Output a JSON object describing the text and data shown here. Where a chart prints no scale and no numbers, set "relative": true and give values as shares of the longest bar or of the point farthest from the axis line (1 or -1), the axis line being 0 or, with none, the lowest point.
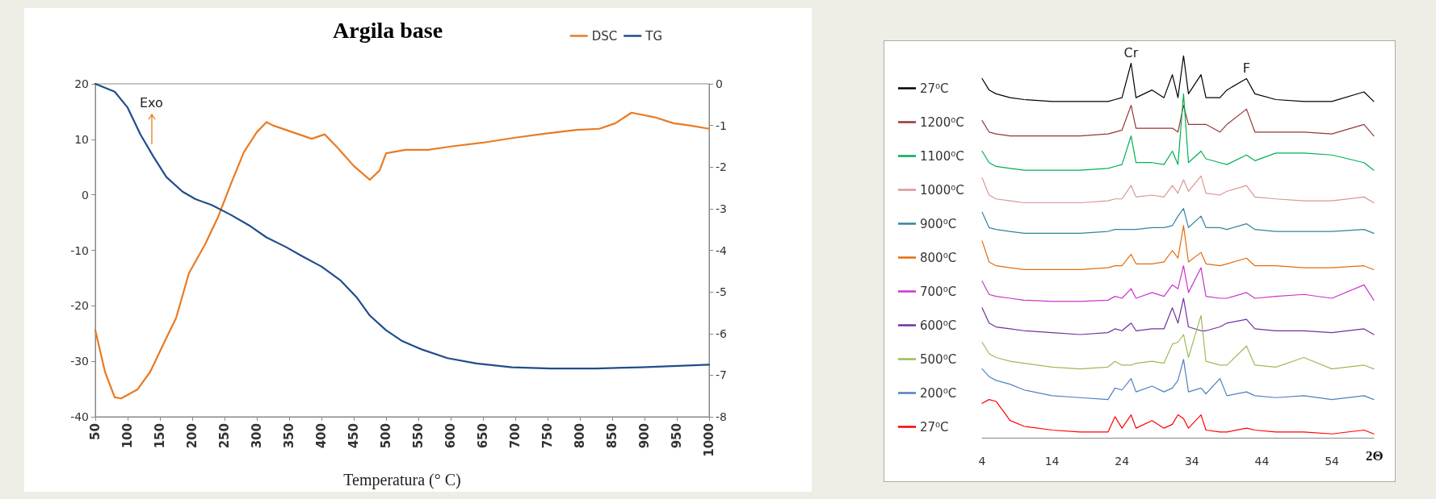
{
  "chart_data": [
    {
      "type": "line",
      "title": "Argila base",
      "xlabel": "Temperatura (° C)",
      "annotations": [
        "Exo"
      ],
      "legend": "top right",
      "marker": "none",
      "xlim": [
        50,
        1000
      ],
      "xticks": [
        50,
        100,
        150,
        200,
        250,
        300,
        350,
        400,
        450,
        500,
        550,
        600,
        650,
        700,
        750,
        800,
        850,
        900,
        950,
        1000
      ],
      "ylim": [
        -40,
        20
      ],
      "yticks": [
        -40,
        -30,
        -20,
        -10,
        0,
        10,
        20
      ],
      "y2lim": [
        -8,
        0
      ],
      "y2ticks": [
        -8,
        -7,
        -6,
        -5,
        -4,
        -3,
        -2,
        -1,
        0
      ],
      "series": [
        {
          "name": "DSC",
          "color": "#e87b24",
          "x": [
            50,
            65,
            80,
            90,
            115,
            135,
            155,
            175,
            195,
            220,
            240,
            260,
            280,
            300,
            315,
            325,
            355,
            385,
            405,
            425,
            450,
            475,
            490,
            500,
            530,
            565,
            600,
            650,
            700,
            745,
            795,
            830,
            855,
            880,
            915,
            945,
            970,
            1000
          ],
          "values": [
            -24.4,
            -31.9,
            -36.5,
            -36.7,
            -35.1,
            -31.9,
            -27.0,
            -22.2,
            -14.1,
            -8.9,
            -4.0,
            2.0,
            7.7,
            11.3,
            13.1,
            12.5,
            11.3,
            10.1,
            10.9,
            8.5,
            5.2,
            2.7,
            4.4,
            7.5,
            8.1,
            8.1,
            8.7,
            9.4,
            10.3,
            11.0,
            11.7,
            11.9,
            12.9,
            14.8,
            14.0,
            12.9,
            12.5,
            11.9
          ]
        },
        {
          "name": "TG",
          "color": "#1f4e8c",
          "axis": "y2",
          "x": [
            50,
            80,
            100,
            120,
            140,
            160,
            185,
            205,
            230,
            260,
            290,
            315,
            345,
            370,
            400,
            430,
            455,
            475,
            500,
            525,
            555,
            595,
            640,
            695,
            755,
            825,
            895,
            1000
          ],
          "values": [
            0,
            -0.19,
            -0.57,
            -1.22,
            -1.75,
            -2.24,
            -2.59,
            -2.77,
            -2.91,
            -3.15,
            -3.42,
            -3.69,
            -3.92,
            -4.14,
            -4.39,
            -4.73,
            -5.14,
            -5.57,
            -5.92,
            -6.18,
            -6.38,
            -6.59,
            -6.72,
            -6.81,
            -6.84,
            -6.84,
            -6.81,
            -6.75
          ]
        }
      ]
    },
    {
      "type": "line",
      "relative": true,
      "xlabel": "2Θ",
      "legend": "left",
      "marker": "none",
      "annotations": [
        {
          "text": "Cr",
          "x": 25.3,
          "y": 0.99
        },
        {
          "text": "F",
          "x": 41.8,
          "y": 0.95
        }
      ],
      "xlim": [
        4,
        60
      ],
      "xticks": [
        4,
        14,
        24,
        34,
        44,
        54
      ],
      "x": [
        4,
        5,
        6,
        8,
        10,
        14,
        18,
        22,
        23,
        24,
        25.3,
        26,
        28.3,
        30,
        31.2,
        32,
        32.8,
        33.5,
        35.3,
        36,
        38,
        39,
        41.8,
        43,
        46,
        50,
        54,
        58.6,
        60
      ],
      "series": [
        {
          "name": "27⁰C",
          "color": "#000000",
          "values": [
            0.94,
            0.91,
            0.9,
            0.89,
            0.885,
            0.88,
            0.88,
            0.88,
            0.885,
            0.89,
            0.98,
            0.89,
            0.91,
            0.89,
            0.95,
            0.89,
            1.0,
            0.9,
            0.95,
            0.89,
            0.89,
            0.91,
            0.94,
            0.9,
            0.885,
            0.88,
            0.88,
            0.905,
            0.88
          ]
        },
        {
          "name": "1200⁰C",
          "color": "#953735",
          "values": [
            0.83,
            0.8,
            0.795,
            0.79,
            0.79,
            0.79,
            0.79,
            0.795,
            0.8,
            0.805,
            0.87,
            0.81,
            0.81,
            0.81,
            0.81,
            0.8,
            0.87,
            0.82,
            0.82,
            0.82,
            0.8,
            0.82,
            0.86,
            0.8,
            0.8,
            0.8,
            0.795,
            0.82,
            0.79
          ]
        },
        {
          "name": "1100⁰C",
          "color": "#00b050",
          "values": [
            0.75,
            0.72,
            0.71,
            0.705,
            0.7,
            0.7,
            0.7,
            0.705,
            0.71,
            0.715,
            0.79,
            0.72,
            0.72,
            0.715,
            0.75,
            0.715,
            0.9,
            0.72,
            0.75,
            0.73,
            0.72,
            0.715,
            0.74,
            0.725,
            0.745,
            0.745,
            0.74,
            0.72,
            0.7
          ]
        },
        {
          "name": "1000⁰C",
          "color": "#d99694",
          "values": [
            0.68,
            0.635,
            0.625,
            0.62,
            0.615,
            0.615,
            0.615,
            0.62,
            0.625,
            0.625,
            0.66,
            0.63,
            0.635,
            0.63,
            0.66,
            0.64,
            0.675,
            0.645,
            0.685,
            0.64,
            0.635,
            0.645,
            0.66,
            0.63,
            0.625,
            0.62,
            0.62,
            0.63,
            0.615
          ]
        },
        {
          "name": "900⁰C",
          "color": "#31859c",
          "values": [
            0.59,
            0.55,
            0.545,
            0.54,
            0.535,
            0.535,
            0.535,
            0.54,
            0.545,
            0.545,
            0.545,
            0.545,
            0.55,
            0.55,
            0.555,
            0.58,
            0.6,
            0.55,
            0.58,
            0.55,
            0.55,
            0.545,
            0.56,
            0.545,
            0.54,
            0.54,
            0.54,
            0.545,
            0.535
          ]
        },
        {
          "name": "800⁰C",
          "color": "#e46c0a",
          "values": [
            0.515,
            0.46,
            0.45,
            0.445,
            0.44,
            0.44,
            0.44,
            0.445,
            0.45,
            0.45,
            0.48,
            0.455,
            0.455,
            0.46,
            0.49,
            0.47,
            0.555,
            0.46,
            0.485,
            0.455,
            0.45,
            0.455,
            0.47,
            0.45,
            0.45,
            0.445,
            0.445,
            0.45,
            0.44
          ]
        },
        {
          "name": "700⁰C",
          "color": "#cc33cc",
          "values": [
            0.41,
            0.375,
            0.37,
            0.365,
            0.36,
            0.357,
            0.357,
            0.36,
            0.37,
            0.365,
            0.39,
            0.365,
            0.38,
            0.37,
            0.4,
            0.39,
            0.45,
            0.38,
            0.445,
            0.37,
            0.365,
            0.365,
            0.38,
            0.365,
            0.37,
            0.375,
            0.365,
            0.4,
            0.36
          ]
        },
        {
          "name": "600⁰C",
          "color": "#7030a0",
          "values": [
            0.34,
            0.3,
            0.29,
            0.285,
            0.28,
            0.275,
            0.27,
            0.275,
            0.285,
            0.28,
            0.3,
            0.28,
            0.285,
            0.285,
            0.34,
            0.3,
            0.365,
            0.29,
            0.28,
            0.28,
            0.29,
            0.3,
            0.31,
            0.285,
            0.28,
            0.28,
            0.275,
            0.285,
            0.27
          ]
        },
        {
          "name": "500⁰C",
          "color": "#9bbb59",
          "values": [
            0.25,
            0.22,
            0.21,
            0.2,
            0.195,
            0.185,
            0.18,
            0.185,
            0.2,
            0.19,
            0.19,
            0.195,
            0.2,
            0.195,
            0.245,
            0.25,
            0.27,
            0.21,
            0.32,
            0.2,
            0.19,
            0.19,
            0.24,
            0.19,
            0.185,
            0.21,
            0.18,
            0.19,
            0.18
          ]
        },
        {
          "name": "200⁰C",
          "color": "#4f81bd",
          "values": [
            0.18,
            0.16,
            0.15,
            0.14,
            0.125,
            0.11,
            0.105,
            0.1,
            0.13,
            0.125,
            0.155,
            0.12,
            0.135,
            0.12,
            0.13,
            0.15,
            0.205,
            0.12,
            0.13,
            0.115,
            0.155,
            0.11,
            0.12,
            0.11,
            0.105,
            0.11,
            0.1,
            0.11,
            0.1
          ]
        },
        {
          "name": "27⁰C",
          "color": "#ff0000",
          "values": [
            0.09,
            0.1,
            0.095,
            0.045,
            0.03,
            0.02,
            0.015,
            0.015,
            0.055,
            0.025,
            0.06,
            0.025,
            0.045,
            0.025,
            0.035,
            0.06,
            0.05,
            0.025,
            0.06,
            0.02,
            0.015,
            0.015,
            0.025,
            0.02,
            0.015,
            0.015,
            0.01,
            0.02,
            0.01
          ]
        }
      ]
    }
  ]
}
